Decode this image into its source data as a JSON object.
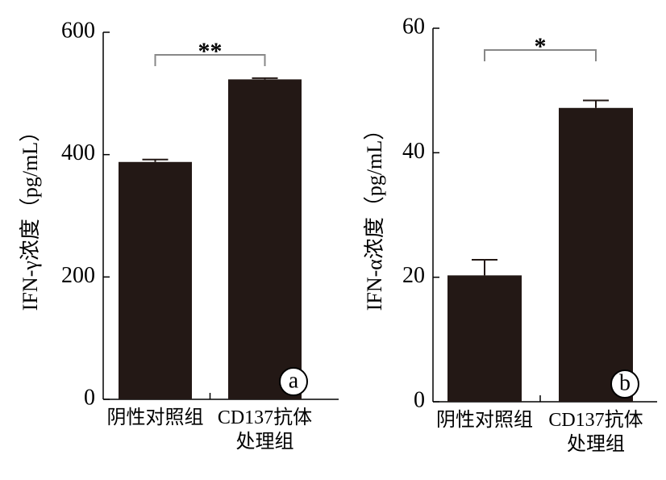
{
  "chart_data": [
    {
      "type": "bar",
      "panel_label": "a",
      "y_label": "IFN-γ浓度（pg/mL）",
      "categories": [
        "阴性对照组",
        "CD137抗体\n处理组"
      ],
      "values": [
        388,
        523
      ],
      "errors": [
        4,
        2
      ],
      "color": "#231815",
      "ylim": [
        0,
        600
      ],
      "yticks": [
        0,
        200,
        400,
        600
      ],
      "significance": "**"
    },
    {
      "type": "bar",
      "panel_label": "b",
      "y_label": "IFN-α浓度（pg/mL）",
      "categories": [
        "阴性对照组",
        "CD137抗体\n处理组"
      ],
      "values": [
        20.3,
        47.2
      ],
      "errors": [
        2.5,
        1.2
      ],
      "color": "#231815",
      "ylim": [
        0,
        60
      ],
      "yticks": [
        0,
        20,
        40,
        60
      ],
      "significance": "*"
    }
  ]
}
